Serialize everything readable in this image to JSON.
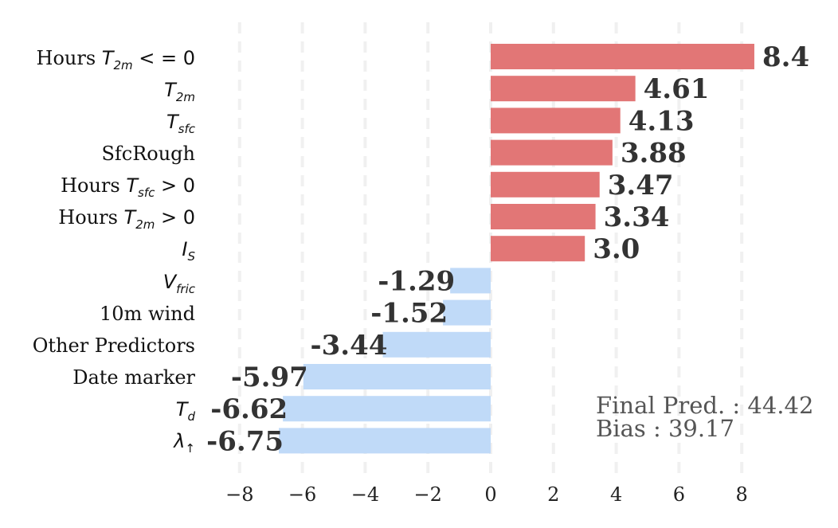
{
  "chart_data": {
    "type": "bar",
    "orientation": "horizontal",
    "categories": [
      "Hours T2m <= 0",
      "T2m",
      "Tsfc",
      "SfcRough",
      "Hours Tsfc > 0",
      "Hours T2m > 0",
      "IS",
      "Vfric",
      "10m wind",
      "Other Predictors",
      "Date marker",
      "Td",
      "λ↑"
    ],
    "values": [
      8.4,
      4.61,
      4.13,
      3.88,
      3.47,
      3.34,
      3.0,
      -1.29,
      -1.52,
      -3.44,
      -5.97,
      -6.62,
      -6.75
    ],
    "value_labels": [
      "8.4",
      "4.61",
      "4.13",
      "3.88",
      "3.47",
      "3.34",
      "3.0",
      "-1.29",
      "-1.52",
      "-3.44",
      "-5.97",
      "-6.62",
      "-6.75"
    ],
    "xlim": [
      -8.5,
      8.6
    ],
    "xticks": [
      -8,
      -6,
      -4,
      -2,
      0,
      2,
      4,
      6,
      8
    ],
    "xtick_labels": [
      "−8",
      "−6",
      "−4",
      "−2",
      "0",
      "2",
      "4",
      "6",
      "8"
    ],
    "grid": "vertical-dashed",
    "colors": {
      "positive": "#e27676",
      "negative": "#c0daf8",
      "grid": "#f0f0f0"
    },
    "annotations": [
      "Final Pred. : 44.42",
      "Bias : 39.17"
    ]
  }
}
